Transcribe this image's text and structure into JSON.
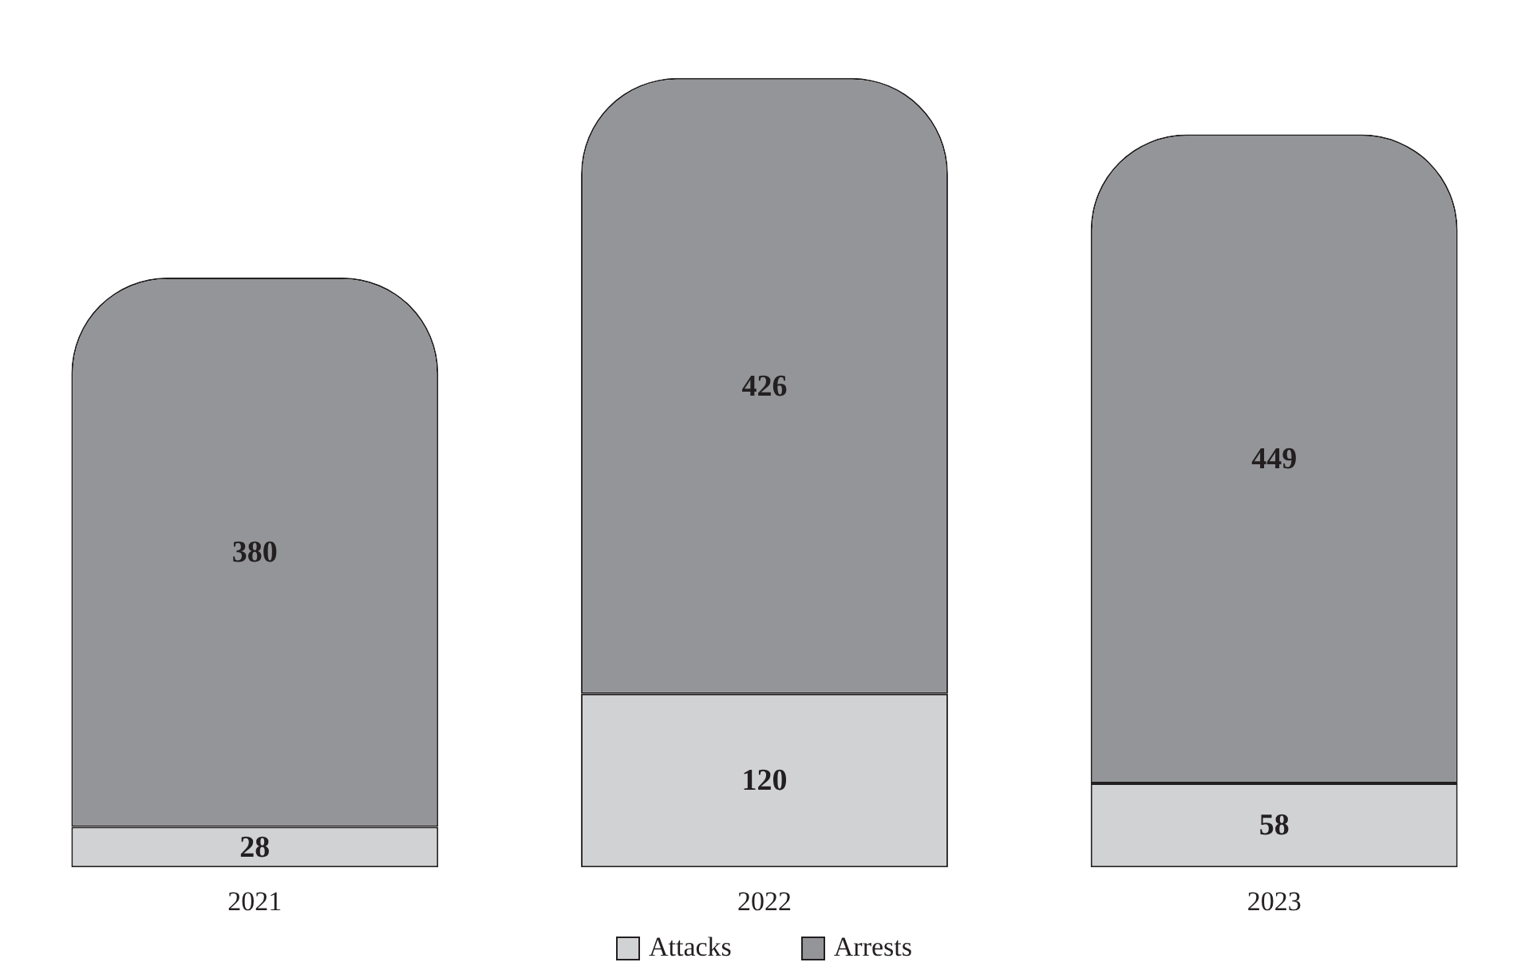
{
  "chart_data": {
    "type": "bar",
    "stacked": true,
    "categories": [
      "2021",
      "2022",
      "2023"
    ],
    "series": [
      {
        "name": "Attacks",
        "color": "#d1d2d4",
        "values": [
          28,
          120,
          58
        ]
      },
      {
        "name": "Arrests",
        "color": "#939598",
        "values": [
          380,
          426,
          449
        ]
      }
    ],
    "data_labels": true,
    "legend": "bottom",
    "grid": false,
    "tick_labels": "x"
  }
}
